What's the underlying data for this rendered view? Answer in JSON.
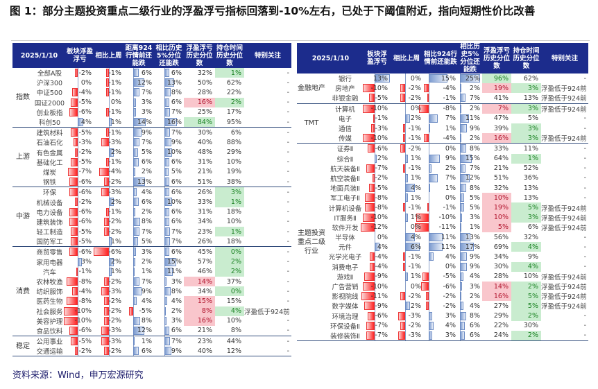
{
  "title": "图 1：部分主题投资重点二级行业的浮盈浮亏指标回落到-10%左右，已处于下阈值附近，指向短期性价比改善",
  "source": "资料来源：Wind，申万宏源研究",
  "colors": {
    "header": "#1c2c8c",
    "negative_bar": "#f22222",
    "positive_bar": "#7c9bd0",
    "low_percentile": "#f9c6cc",
    "high_percentile": "#c9eccf"
  },
  "left": {
    "headers": [
      "2025/1/10",
      "板块浮盈浮亏",
      "相比上周",
      "距离924行情前还能跌",
      "相比历史5%分位还能跌",
      "浮盈浮亏历史分位数",
      "持仓时间历史分位数",
      "特别关注"
    ],
    "groups": [
      {
        "label": "指数",
        "rows": [
          [
            "全部A股",
            "-2%",
            "-1%",
            "6%",
            "6%",
            "32%",
            "1%",
            "-",
            "",
            "green"
          ],
          [
            "沪深300",
            "0%",
            "-1%",
            "12%",
            "13%",
            "50%",
            "62%",
            "-",
            "",
            ""
          ],
          [
            "中证500",
            "-4%",
            "-1%",
            "7%",
            "8%",
            "28%",
            "22%",
            "-",
            "",
            ""
          ],
          [
            "国证2000",
            "-5%",
            "0%",
            "3%",
            "6%",
            "16%",
            "2%",
            "-",
            "red",
            "green"
          ],
          [
            "创业板指",
            "-6%",
            "-1%",
            "3%",
            "7%",
            "25%",
            "17%",
            "-",
            "",
            ""
          ],
          [
            "科创50",
            "4%",
            "1%",
            "14%",
            "16%",
            "84%",
            "95%",
            "-",
            "green",
            ""
          ]
        ]
      },
      {
        "label": "上游",
        "rows": [
          [
            "建筑材料",
            "-5%",
            "-1%",
            "9%",
            "7%",
            "30%",
            "6%",
            "-",
            "",
            ""
          ],
          [
            "石油石化",
            "-3%",
            "-3%",
            "7%",
            "9%",
            "40%",
            "88%",
            "-",
            "",
            ""
          ],
          [
            "有色金属",
            "-2%",
            "2%",
            "5%",
            "10%",
            "48%",
            "29%",
            "-",
            "",
            ""
          ],
          [
            "基础化工",
            "-5%",
            "-1%",
            "6%",
            "6%",
            "31%",
            "10%",
            "-",
            "",
            ""
          ],
          [
            "煤炭",
            "-7%",
            "-4%",
            "2%",
            "5%",
            "21%",
            "19%",
            "-",
            "",
            ""
          ],
          [
            "钢铁",
            "-6%",
            "-2%",
            "13%",
            "6%",
            "51%",
            "38%",
            "-",
            "",
            ""
          ]
        ]
      },
      {
        "label": "中游",
        "rows": [
          [
            "环保",
            "-6%",
            "-3%",
            "4%",
            "6%",
            "26%",
            "3%",
            "-",
            "",
            "green"
          ],
          [
            "机械设备",
            "-2%",
            "2%",
            "6%",
            "10%",
            "33%",
            "1%",
            "-",
            "",
            "green"
          ],
          [
            "电力设备",
            "-6%",
            "-1%",
            "2%",
            "6%",
            "31%",
            "18%",
            "-",
            "",
            ""
          ],
          [
            "建筑装饰",
            "-6%",
            "-2%",
            "8%",
            "6%",
            "34%",
            "10%",
            "-",
            "",
            ""
          ],
          [
            "轻工制造",
            "-5%",
            "-2%",
            "7%",
            "7%",
            "23%",
            "1%",
            "-",
            "",
            "green"
          ],
          [
            "国防军工",
            "-5%",
            "1%",
            "5%",
            "7%",
            "26%",
            "18%",
            "-",
            "",
            ""
          ]
        ]
      },
      {
        "label": "消费",
        "rows": [
          [
            "商贸零售",
            "-6%",
            "-6%",
            "3%",
            "6%",
            "45%",
            "0%",
            "-",
            "",
            "green"
          ],
          [
            "家用电器",
            "3%",
            "2%",
            "2%",
            "15%",
            "57%",
            "2%",
            "-",
            "",
            "green"
          ],
          [
            "汽车",
            "-1%",
            "1%",
            "1%",
            "11%",
            "46%",
            "2%",
            "-",
            "",
            "green"
          ],
          [
            "农林牧渔",
            "-8%",
            "-2%",
            "7%",
            "3%",
            "14%",
            "37%",
            "-",
            "red",
            ""
          ],
          [
            "纺织服饰",
            "-4%",
            "-3%",
            "9%",
            "8%",
            "34%",
            "0%",
            "-",
            "",
            "green"
          ],
          [
            "医药生物",
            "-8%",
            "-2%",
            "4%",
            "4%",
            "15%",
            "15%",
            "-",
            "red",
            ""
          ],
          [
            "社会服务",
            "-10%",
            "-2%",
            "-5%",
            "2%",
            "8%",
            "4%",
            "浮盈低于924前",
            "red",
            "green"
          ],
          [
            "美容护理",
            "-10%",
            "-2%",
            "8%",
            "3%",
            "16%",
            "10%",
            "-",
            "red",
            ""
          ],
          [
            "食品饮料",
            "-6%",
            "-3%",
            "12%",
            "6%",
            "21%",
            "8%",
            "-",
            "",
            ""
          ]
        ]
      },
      {
        "label": "稳定",
        "rows": [
          [
            "公用事业",
            "-5%",
            "-3%",
            "1%",
            "7%",
            "23%",
            "44%",
            "-",
            "",
            ""
          ],
          [
            "交通运输",
            "-2%",
            "-2%",
            "6%",
            "9%",
            "40%",
            "12%",
            "-",
            "",
            ""
          ]
        ]
      }
    ]
  },
  "right": {
    "headers": [
      "2025/1/10",
      "板块浮盈浮亏",
      "相比上周",
      "相比924行情前还能跌",
      "相比历史5%分位还能跌",
      "浮盈浮亏历史分位数",
      "持仓时间历史分位数",
      "特别关注"
    ],
    "groups": [
      {
        "label": "金融地产",
        "rows": [
          [
            "银行",
            "13%",
            "0%",
            "15%",
            "25%",
            "96%",
            "62%",
            "-",
            "green",
            ""
          ],
          [
            "房地产",
            "-10%",
            "-2%",
            "-4%",
            "2%",
            "19%",
            "3%",
            "浮盈低于924前",
            "red",
            "green"
          ],
          [
            "非银金融",
            "-5%",
            "-2%",
            "-1%",
            "7%",
            "41%",
            "13%",
            "浮盈低于924前",
            "",
            ""
          ]
        ]
      },
      {
        "label": "TMT",
        "rows": [
          [
            "计算机",
            "-10%",
            "0%",
            "-8%",
            "2%",
            "7%",
            "3%",
            "浮盈低于924前",
            "red",
            "green"
          ],
          [
            "电子",
            "-1%",
            "2%",
            "7%",
            "11%",
            "47%",
            "5%",
            "-",
            "",
            ""
          ],
          [
            "通信",
            "-3%",
            "-1%",
            "1%",
            "9%",
            "39%",
            "3%",
            "-",
            "",
            "green"
          ],
          [
            "传媒",
            "-10%",
            "-1%",
            "-4%",
            "2%",
            "16%",
            "3%",
            "浮盈低于924前",
            "red",
            "green"
          ]
        ]
      },
      {
        "label": "主题投资重点二级行业",
        "rows": [
          [
            "证券Ⅱ",
            "-6%",
            "-2%",
            "0%",
            "8%",
            "33%",
            "11%",
            "-",
            "",
            ""
          ],
          [
            "综合Ⅱ",
            "2%",
            "1%",
            "9%",
            "15%",
            "64%",
            "1%",
            "-",
            "",
            "green"
          ],
          [
            "航天装备Ⅱ",
            "-7%",
            "-1%",
            "2%",
            "7%",
            "21%",
            "52%",
            "-",
            "",
            ""
          ],
          [
            "航空装备Ⅱ",
            "-2%",
            "1%",
            "7%",
            "12%",
            "51%",
            "36%",
            "-",
            "",
            ""
          ],
          [
            "地面兵装Ⅱ",
            "-5%",
            "4%",
            "1%",
            "8%",
            "32%",
            "13%",
            "-",
            "",
            ""
          ],
          [
            "军工电子Ⅱ",
            "-8%",
            "1%",
            "0%",
            "5%",
            "10%",
            "13%",
            "-",
            "red",
            ""
          ],
          [
            "计算机设备",
            "-8%",
            "-1%",
            "-1%",
            "5%",
            "19%",
            "5%",
            "浮盈低于924前",
            "red",
            "green"
          ],
          [
            "IT服务Ⅱ",
            "-10%",
            "1%",
            "-10%",
            "3%",
            "10%",
            "3%",
            "浮盈低于924前",
            "red",
            "green"
          ],
          [
            "软件开发",
            "-12%",
            "0%",
            "-11%",
            "1%",
            "5%",
            "6%",
            "浮盈低于924前",
            "red",
            ""
          ],
          [
            "半导体",
            "0%",
            "4%",
            "11%",
            "13%",
            "56%",
            "32%",
            "-",
            "",
            ""
          ],
          [
            "元件",
            "4%",
            "6%",
            "11%",
            "17%",
            "69%",
            "4%",
            "-",
            "",
            "green"
          ],
          [
            "光学光电子",
            "-4%",
            "-1%",
            "4%",
            "9%",
            "34%",
            "9%",
            "-",
            "",
            ""
          ],
          [
            "消费电子",
            "-4%",
            "-1%",
            "0%",
            "9%",
            "30%",
            "4%",
            "-",
            "",
            "green"
          ],
          [
            "游戏Ⅱ",
            "-9%",
            "1%",
            "-5%",
            "4%",
            "28%",
            "10%",
            "浮盈低于924前",
            "",
            ""
          ],
          [
            "广告营销",
            "-10%",
            "0%",
            "-6%",
            "3%",
            "14%",
            "2%",
            "浮盈低于924前",
            "red",
            "green"
          ],
          [
            "影视院线",
            "-11%",
            "-2%",
            "-2%",
            "2%",
            "16%",
            "5%",
            "浮盈低于924前",
            "red",
            "green"
          ],
          [
            "数字媒体",
            "-9%",
            "2%",
            "-2%",
            "4%",
            "27%",
            "5%",
            "浮盈低于924前",
            "",
            "green"
          ],
          [
            "环境治理",
            "-6%",
            "-3%",
            "3%",
            "8%",
            "29%",
            "2%",
            "-",
            "",
            "green"
          ],
          [
            "环保设备Ⅱ",
            "-7%",
            "-2%",
            "4%",
            "6%",
            "22%",
            "30%",
            "-",
            "",
            ""
          ],
          [
            "装修装饰Ⅱ",
            "-7%",
            "-3%",
            "3%",
            "6%",
            "24%",
            "2%",
            "-",
            "",
            "green"
          ]
        ]
      }
    ]
  }
}
